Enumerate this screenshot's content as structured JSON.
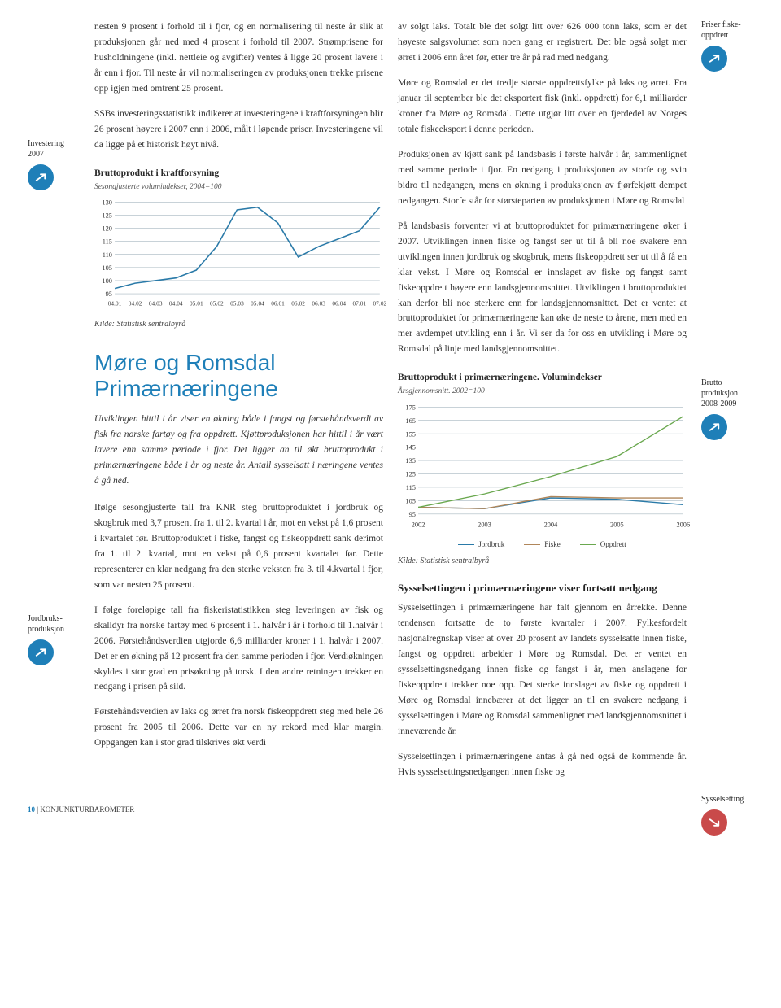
{
  "leftMargin1": {
    "label": "Investering\n2007",
    "arrow": "up"
  },
  "leftMargin2": {
    "label": "Jordbruks-\nproduksjon",
    "arrow": "up"
  },
  "rightMargin1": {
    "label": "Priser fiske-\noppdrett",
    "arrow": "up"
  },
  "rightMargin2": {
    "label": "Brutto\nproduksjon\n2008-2009",
    "arrow": "up"
  },
  "rightMargin3": {
    "label": "Sysselsetting",
    "arrow": "down"
  },
  "col1": {
    "p1": "nesten 9 prosent i forhold til i fjor, og en normalisering til neste år slik at produksjonen går ned med 4 prosent i forhold til 2007. Strømprisene for husholdningene (inkl. nettleie og avgifter) ventes å ligge 20 prosent lavere i år enn i fjor. Til neste år vil normaliseringen av produksjonen trekke prisene opp igjen med omtrent 25 prosent.",
    "p2": "SSBs investeringsstatistikk indikerer at investeringene i kraftforsyningen blir 26 prosent høyere i 2007 enn i 2006, målt i løpende priser. Investeringene vil da ligge på et historisk høyt nivå.",
    "sectionTitle": "Møre og Romsdal\nPrimærnæringene",
    "intro": "Utviklingen hittil i år viser en økning både i fangst og førstehåndsverdi av fisk fra norske fartøy og fra oppdrett. Kjøttproduksjonen har hittil i år vært lavere enn samme periode i fjor. Det ligger an til økt bruttoprodukt i primærnæringene både i år og neste år. Antall sysselsatt i næringene ventes å gå ned.",
    "p3": "Ifølge sesongjusterte tall fra KNR steg bruttoproduktet i jordbruk og skogbruk med 3,7 prosent fra 1. til 2. kvartal i år, mot en vekst på 1,6 prosent i kvartalet før.  Bruttoproduktet i fiske, fangst og fiskeoppdrett sank derimot fra 1. til 2. kvartal, mot en vekst på 0,6 prosent kvartalet før. Dette representerer en klar nedgang fra den sterke veksten fra 3. til 4.kvartal i fjor, som var nesten 25 prosent.",
    "p4": "I følge foreløpige tall fra fiskeristatistikken steg leveringen av fisk og skalldyr fra norske fartøy med 6 prosent i 1. halvår i år i forhold til 1.halvår i 2006. Førstehåndsverdien utgjorde 6,6 milliarder kroner i 1. halvår i 2007. Det er en økning på 12 prosent fra den samme perioden i fjor. Verdiøkningen skyldes i stor grad en prisøkning på torsk. I den andre retningen trekker en nedgang i prisen på sild.",
    "p5": "Førstehåndsverdien av laks og ørret fra norsk fiskeoppdrett steg med hele 26 prosent fra 2005 til 2006. Dette var en ny rekord med klar margin. Oppgangen kan i stor grad tilskrives økt verdi"
  },
  "col2": {
    "p1": "av solgt laks. Totalt ble det solgt litt over 626 000 tonn laks, som er det høyeste salgsvolumet som noen gang er registrert. Det ble også solgt mer ørret i 2006 enn året før, etter tre år på rad med nedgang.",
    "p2": "Møre og Romsdal er det tredje største oppdrettsfylke på laks og ørret. Fra januar til september ble det eksportert fisk (inkl. oppdrett) for 6,1 milliarder kroner fra Møre og Romsdal. Dette utgjør litt over en fjerdedel av Norges totale fiskeeksport i denne perioden.",
    "p3": "Produksjonen av kjøtt sank på landsbasis i første halvår i år, sammenlignet med samme periode i fjor. En nedgang i produksjonen av storfe og svin bidro til nedgangen, mens en økning i produksjonen av fjørfekjøtt dempet nedgangen. Storfe står for størsteparten av produksjonen i Møre og Romsdal",
    "p4": "På landsbasis forventer vi at bruttoproduktet for primærnæringene øker i 2007. Utviklingen innen fiske og fangst ser ut til å bli noe svakere enn utviklingen innen jordbruk og skogbruk, mens fiskeoppdrett ser ut til å få en klar vekst. I Møre og Romsdal er innslaget av fiske og fangst samt fiskeoppdrett høyere enn landsgjennomsnittet. Utviklingen i bruttoproduktet kan derfor bli noe sterkere enn for landsgjennomsnittet. Det er ventet at bruttoproduktet for primærnæringene kan øke de neste to årene, men med en mer avdempet utvikling enn i år. Vi ser da for oss en utvikling i Møre og Romsdal på linje med landsgjennomsnittet.",
    "subheading": "Sysselsettingen i primærnæringene viser fortsatt nedgang",
    "p5": "Sysselsettingen i primærnæringene har falt gjennom en årrekke. Denne tendensen fortsatte de to første kvartaler i 2007. Fylkesfordelt nasjonalregnskap viser at over 20 prosent av landets sysselsatte innen fiske, fangst og oppdrett arbeider i Møre og Romsdal. Det er ventet en sysselsettingsnedgang innen fiske og fangst i år, men anslagene for fiskeoppdrett trekker noe opp. Det sterke innslaget av fiske og oppdrett i Møre og Romsdal innebærer at det ligger an til en svakere nedgang i sysselsettingen i Møre og Romsdal sammenlignet med landsgjennomsnittet i inneværende år.",
    "p6": "Sysselsettingen i primærnæringene antas å gå ned også de kommende år. Hvis sysselsettingsnedgangen innen fiske og"
  },
  "chart1": {
    "type": "line",
    "title": "Bruttoprodukt i kraftforsyning",
    "subtitle": "Sesongjusterte volumindekser, 2004=100",
    "source": "Kilde: Statistisk sentralbyrå",
    "x_labels": [
      "04:01",
      "04:02",
      "04:03",
      "04:04",
      "05:01",
      "05:02",
      "05:03",
      "05:04",
      "06:01",
      "06:02",
      "06:03",
      "06:04",
      "07:01",
      "07:02"
    ],
    "y_ticks": [
      95,
      100,
      105,
      110,
      115,
      120,
      125,
      130
    ],
    "ylim": [
      95,
      130
    ],
    "values": [
      97,
      99,
      100,
      101,
      104,
      113,
      127,
      128,
      122,
      109,
      113,
      116,
      119,
      128
    ],
    "line_color": "#2a7aa8",
    "grid_color": "#a8b8c0",
    "line_width": 1.5,
    "label_fontsize": 8,
    "background_color": "#ffffff"
  },
  "chart2": {
    "type": "line-multi",
    "title": "Bruttoprodukt i primærnæringene. Volumindekser",
    "subtitle": "Årsgjennomsnitt. 2002=100",
    "source": "Kilde: Statistisk sentralbyrå",
    "x_labels": [
      "2002",
      "2003",
      "2004",
      "2005",
      "2006"
    ],
    "y_ticks": [
      95,
      105,
      115,
      125,
      135,
      145,
      155,
      165,
      175
    ],
    "ylim": [
      95,
      175
    ],
    "series": [
      {
        "name": "Jordbruk",
        "color": "#2a7aa8",
        "values": [
          100,
          99,
          107,
          106,
          102
        ]
      },
      {
        "name": "Fiske",
        "color": "#b0865a",
        "values": [
          100,
          99,
          108,
          107,
          107
        ]
      },
      {
        "name": "Oppdrett",
        "color": "#6aa84f",
        "values": [
          100,
          110,
          123,
          138,
          168
        ]
      }
    ],
    "grid_color": "#a8b8c0",
    "line_width": 1.3,
    "label_fontsize": 8,
    "background_color": "#ffffff"
  },
  "footer": {
    "page": "10",
    "title": "KONJUNKTURBAROMETER"
  },
  "colors": {
    "arrow_up_bg": "#1e7fb8",
    "arrow_down_bg": "#c94a4a",
    "heading_blue": "#1e7fb8"
  }
}
